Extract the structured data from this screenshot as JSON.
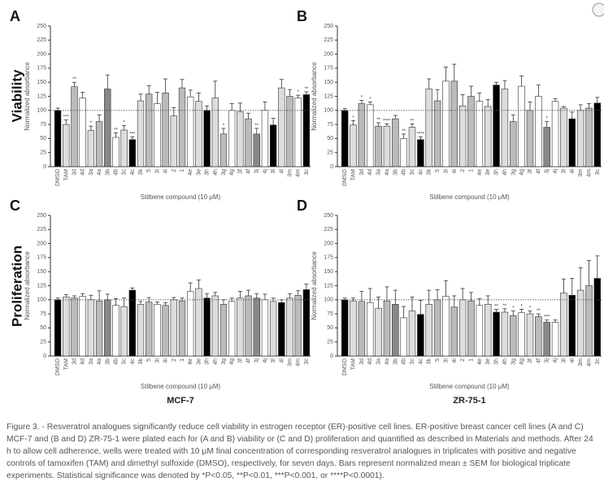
{
  "row_labels": [
    "Viability",
    "Proliferation"
  ],
  "caption": "Figure 3. - Resveratrol analogues significantly reduce cell viability in estrogen receptor (ER)-positive cell lines. ER-positive breast cancer cell lines (A and C) MCF-7 and (B and D) ZR-75-1 were plated each for (A and B) viability or (C and D) proliferation and quantified as described in Materials and methods. After 24 h to allow cell adherence, wells were treated with 10 µM final concentration of corresponding resveratrol analogues in triplicates with positive and negative controls of tamoxifen (TAM) and dimethyl sulfoxide (DMSO), respectively, for seven days. Bars represent normalized mean ± SEM for biological triplicate experiments. Statistical significance was denoted by *P<0.05, **P<0.01, ***P<0.001, or ****P<0.0001).",
  "chart_data": [
    {
      "type": "bar",
      "panel": "A",
      "ylabel": "Normalized absorbance",
      "xlabel": "Stilbene compound (10 μM)",
      "categories": [
        "DMSO",
        "TAM",
        "3d",
        "4d",
        "3a",
        "4a",
        "3b",
        "4b",
        "3c",
        "4c",
        "3k",
        "5",
        "3i",
        "4i",
        "2",
        "1",
        "4e",
        "3e",
        "3h",
        "4h",
        "3g",
        "4g",
        "3f",
        "4f",
        "3j",
        "4j",
        "3l",
        "4l",
        "3m",
        "4m",
        "3c"
      ],
      "values": [
        100,
        75,
        142,
        122,
        64,
        80,
        138,
        52,
        65,
        48,
        117,
        129,
        112,
        131,
        90,
        140,
        124,
        116,
        100,
        122,
        58,
        100,
        98,
        85,
        58,
        100,
        74,
        140,
        125,
        122,
        128
      ],
      "errors": [
        4,
        8,
        8,
        10,
        8,
        12,
        25,
        8,
        8,
        5,
        12,
        15,
        20,
        25,
        15,
        15,
        12,
        15,
        8,
        30,
        10,
        12,
        15,
        10,
        10,
        15,
        12,
        15,
        12,
        5,
        5
      ],
      "stars": [
        null,
        "***",
        "**",
        null,
        "*",
        null,
        null,
        "**",
        "*",
        "***",
        null,
        null,
        null,
        null,
        null,
        null,
        null,
        null,
        null,
        null,
        "*",
        null,
        null,
        null,
        "**",
        null,
        null,
        null,
        null,
        "*",
        "**"
      ],
      "colors": [
        "#000000",
        "#dddddd",
        "#bbbbbb",
        "#ffffff",
        "#dddddd",
        "#bbbbbb",
        "#888888",
        "#ffffff",
        "#dddddd",
        "#000000",
        "#dddddd",
        "#bbbbbb",
        "#ffffff",
        "#bbbbbb",
        "#dddddd",
        "#bbbbbb",
        "#ffffff",
        "#dddddd",
        "#000000",
        "#dddddd",
        "#bbbbbb",
        "#ffffff",
        "#dddddd",
        "#bbbbbb",
        "#888888",
        "#ffffff",
        "#000000",
        "#dddddd",
        "#bbbbbb",
        "#ffffff",
        "#000000"
      ],
      "ylim": [
        0,
        250
      ],
      "yticks": [
        0,
        25,
        50,
        75,
        100,
        125,
        150,
        175,
        200,
        225,
        250
      ],
      "refline": 100
    },
    {
      "type": "bar",
      "panel": "B",
      "ylabel": "Normalized absorbance",
      "xlabel": "Stilbene compound (10 μM)",
      "categories": [
        "DMSO",
        "TAM",
        "3d",
        "4d",
        "3a",
        "4a",
        "3b",
        "4b",
        "3c",
        "4c",
        "3k",
        "5",
        "3i",
        "4i",
        "2",
        "1",
        "4e",
        "3e",
        "3h",
        "4h",
        "3g",
        "4g",
        "3f",
        "4f",
        "3j",
        "4j",
        "3l",
        "4l",
        "3m",
        "4m",
        "3c"
      ],
      "values": [
        100,
        74,
        112,
        110,
        72,
        72,
        85,
        50,
        70,
        48,
        138,
        117,
        152,
        152,
        108,
        125,
        116,
        107,
        145,
        138,
        80,
        143,
        100,
        125,
        70,
        116,
        104,
        85,
        100,
        104,
        113
      ],
      "errors": [
        3,
        8,
        6,
        5,
        6,
        4,
        6,
        8,
        6,
        5,
        18,
        20,
        25,
        30,
        20,
        18,
        15,
        12,
        5,
        15,
        12,
        18,
        15,
        20,
        10,
        5,
        3,
        12,
        10,
        8,
        10
      ],
      "stars": [
        null,
        "*",
        "*",
        "*",
        "**",
        "****",
        null,
        "**",
        "**",
        "****",
        null,
        null,
        null,
        null,
        null,
        null,
        null,
        null,
        null,
        null,
        null,
        null,
        null,
        null,
        "*",
        null,
        null,
        null,
        null,
        null,
        null
      ],
      "colors": [
        "#000000",
        "#dddddd",
        "#bbbbbb",
        "#ffffff",
        "#bbbbbb",
        "#dddddd",
        "#bbbbbb",
        "#ffffff",
        "#dddddd",
        "#000000",
        "#dddddd",
        "#bbbbbb",
        "#ffffff",
        "#bbbbbb",
        "#dddddd",
        "#bbbbbb",
        "#ffffff",
        "#dddddd",
        "#000000",
        "#dddddd",
        "#bbbbbb",
        "#ffffff",
        "#bbbbbb",
        "#ffffff",
        "#888888",
        "#ffffff",
        "#dddddd",
        "#000000",
        "#dddddd",
        "#bbbbbb",
        "#000000"
      ],
      "ylim": [
        0,
        250
      ],
      "yticks": [
        0,
        25,
        50,
        75,
        100,
        125,
        150,
        175,
        200,
        225,
        250
      ],
      "refline": 100
    },
    {
      "type": "bar",
      "panel": "C",
      "cell_line": "MCF-7",
      "ylabel": "Normalized absorbance",
      "xlabel": "Stilbene compound (10 μM)",
      "categories": [
        "DMSO",
        "TAM",
        "3d",
        "4d",
        "3a",
        "4a",
        "3b",
        "4b",
        "3c",
        "4c",
        "3k",
        "5",
        "3i",
        "4i",
        "2",
        "1",
        "4e",
        "3e",
        "3h",
        "4h",
        "3g",
        "4g",
        "3f",
        "4f",
        "3j",
        "4j",
        "3l",
        "4l",
        "3m",
        "4m",
        "3c"
      ],
      "values": [
        100,
        105,
        103,
        106,
        100,
        98,
        100,
        90,
        88,
        117,
        92,
        96,
        92,
        90,
        100,
        98,
        115,
        120,
        103,
        107,
        92,
        97,
        103,
        107,
        103,
        100,
        97,
        95,
        103,
        108,
        118
      ],
      "errors": [
        3,
        4,
        4,
        5,
        8,
        18,
        10,
        12,
        15,
        4,
        5,
        8,
        4,
        5,
        4,
        5,
        15,
        15,
        8,
        6,
        8,
        6,
        12,
        10,
        8,
        10,
        6,
        5,
        8,
        8,
        10
      ],
      "colors": [
        "#000000",
        "#dddddd",
        "#bbbbbb",
        "#ffffff",
        "#dddddd",
        "#bbbbbb",
        "#888888",
        "#ffffff",
        "#dddddd",
        "#000000",
        "#dddddd",
        "#bbbbbb",
        "#ffffff",
        "#bbbbbb",
        "#dddddd",
        "#bbbbbb",
        "#ffffff",
        "#dddddd",
        "#000000",
        "#dddddd",
        "#bbbbbb",
        "#ffffff",
        "#dddddd",
        "#bbbbbb",
        "#888888",
        "#ffffff",
        "#dddddd",
        "#000000",
        "#dddddd",
        "#bbbbbb",
        "#000000"
      ],
      "ylim": [
        0,
        250
      ],
      "yticks": [
        0,
        25,
        50,
        75,
        100,
        125,
        150,
        175,
        200,
        225,
        250
      ],
      "refline": 100
    },
    {
      "type": "bar",
      "panel": "D",
      "cell_line": "ZR-75-1",
      "ylabel": "Normalized absorbance",
      "xlabel": "Stilbene compound (10 μM)",
      "categories": [
        "DMSO",
        "TAM",
        "3d",
        "4d",
        "3a",
        "4a",
        "3b",
        "4b",
        "3c",
        "4c",
        "3k",
        "5",
        "3i",
        "4i",
        "2",
        "1",
        "4e",
        "3e",
        "3h",
        "4h",
        "3g",
        "4g",
        "3f",
        "4f",
        "3j",
        "4j",
        "3l",
        "4l",
        "3m",
        "4m",
        "3c"
      ],
      "values": [
        100,
        98,
        97,
        95,
        85,
        98,
        92,
        68,
        80,
        74,
        92,
        100,
        106,
        87,
        100,
        98,
        90,
        92,
        78,
        78,
        72,
        77,
        75,
        70,
        60,
        60,
        112,
        108,
        117,
        125,
        138
      ],
      "errors": [
        3,
        5,
        18,
        25,
        20,
        25,
        25,
        20,
        25,
        25,
        25,
        18,
        28,
        20,
        20,
        15,
        12,
        15,
        5,
        6,
        8,
        6,
        5,
        5,
        4,
        4,
        25,
        30,
        40,
        45,
        40
      ],
      "stars": [
        null,
        null,
        null,
        null,
        null,
        null,
        null,
        null,
        null,
        null,
        null,
        null,
        null,
        null,
        null,
        null,
        null,
        null,
        "**",
        "**",
        "*",
        "*",
        "*",
        "**",
        "***",
        null,
        null,
        null,
        null,
        null,
        null
      ],
      "colors": [
        "#000000",
        "#dddddd",
        "#bbbbbb",
        "#ffffff",
        "#dddddd",
        "#bbbbbb",
        "#888888",
        "#ffffff",
        "#dddddd",
        "#000000",
        "#dddddd",
        "#bbbbbb",
        "#ffffff",
        "#bbbbbb",
        "#dddddd",
        "#bbbbbb",
        "#ffffff",
        "#dddddd",
        "#000000",
        "#dddddd",
        "#bbbbbb",
        "#ffffff",
        "#dddddd",
        "#bbbbbb",
        "#888888",
        "#ffffff",
        "#dddddd",
        "#000000",
        "#dddddd",
        "#bbbbbb",
        "#000000"
      ],
      "ylim": [
        0,
        250
      ],
      "yticks": [
        0,
        25,
        50,
        75,
        100,
        125,
        150,
        175,
        200,
        225,
        250
      ],
      "refline": 100
    }
  ]
}
